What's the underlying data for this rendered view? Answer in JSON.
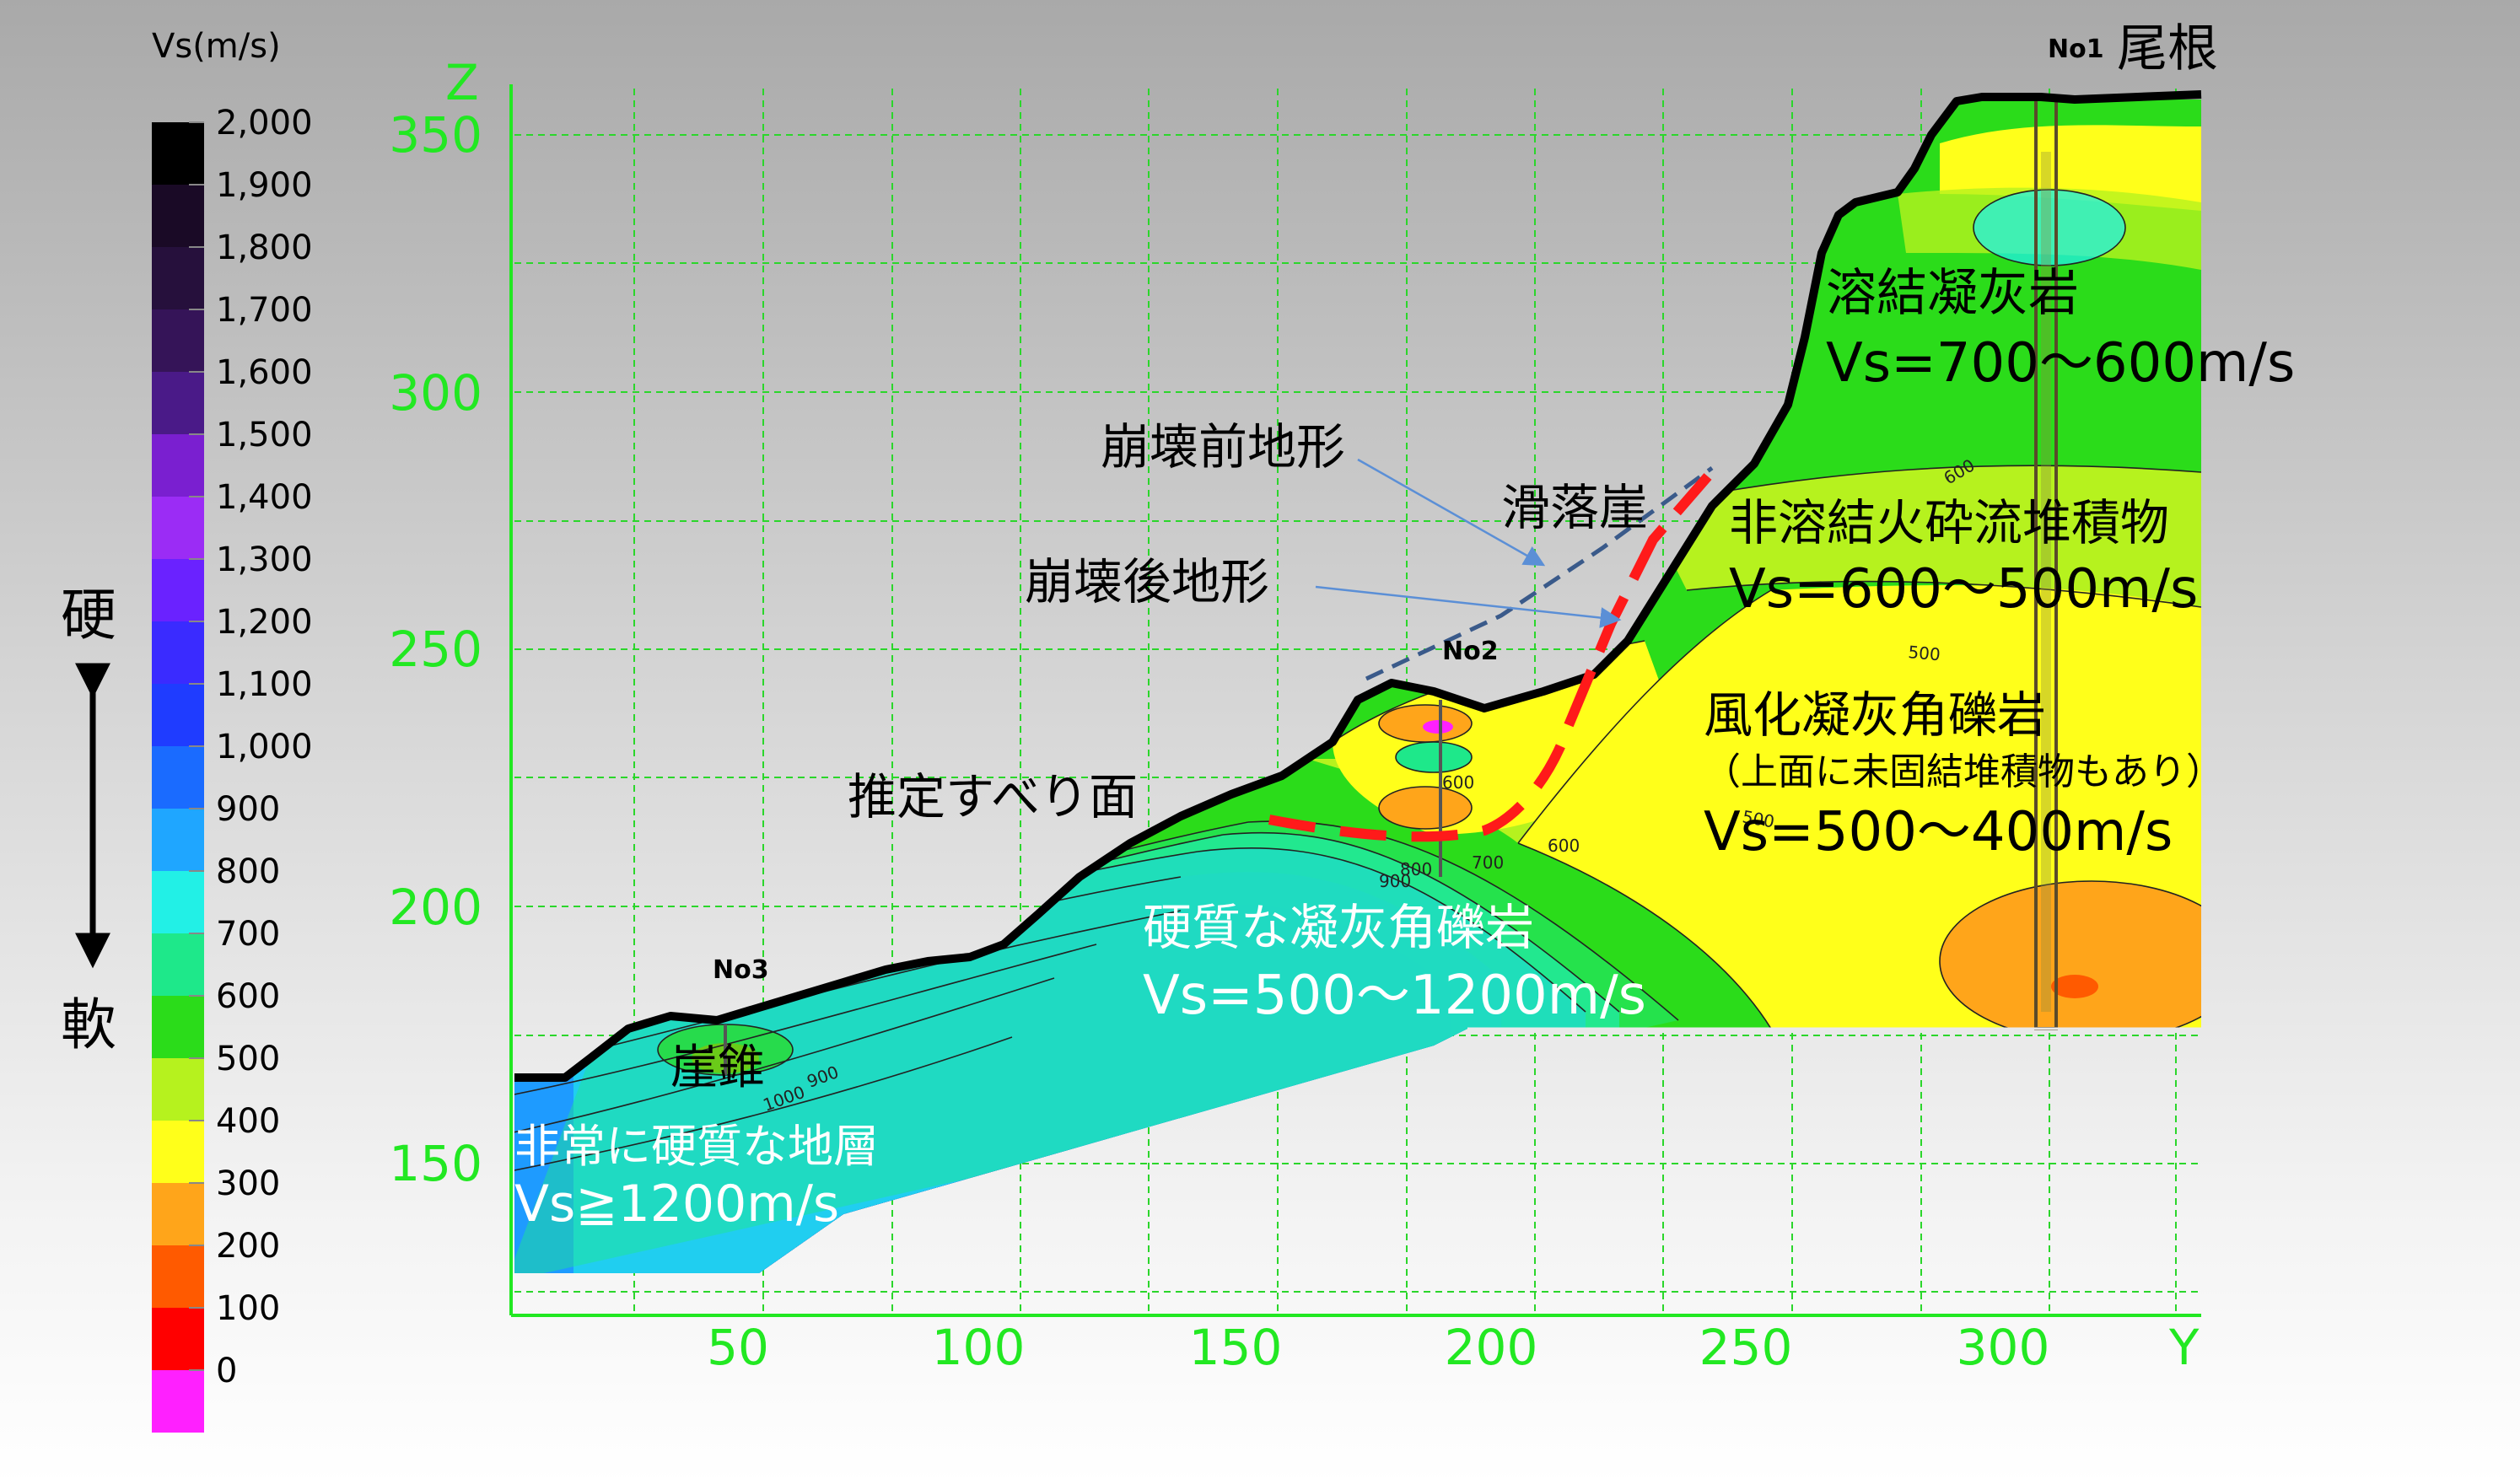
{
  "legend": {
    "title": "Vs(m/s)",
    "stops": [
      {
        "label": "2,000",
        "color": "#000000"
      },
      {
        "label": "1,900",
        "color": "#1a0a26"
      },
      {
        "label": "1,800",
        "color": "#26103c"
      },
      {
        "label": "1,700",
        "color": "#351458"
      },
      {
        "label": "1,600",
        "color": "#4a1a88"
      },
      {
        "label": "1,500",
        "color": "#7a1fd0"
      },
      {
        "label": "1,400",
        "color": "#9b2cf5"
      },
      {
        "label": "1,300",
        "color": "#6a22ff"
      },
      {
        "label": "1,200",
        "color": "#3a2bff"
      },
      {
        "label": "1,100",
        "color": "#1f3cff"
      },
      {
        "label": "1,000",
        "color": "#1a6bff"
      },
      {
        "label": "900",
        "color": "#1fa6ff"
      },
      {
        "label": "800",
        "color": "#22f0e6"
      },
      {
        "label": "700",
        "color": "#1ee88a"
      },
      {
        "label": "600",
        "color": "#2bdc1a"
      },
      {
        "label": "500",
        "color": "#b6f21e"
      },
      {
        "label": "400",
        "color": "#ffff1a"
      },
      {
        "label": "300",
        "color": "#ffa51a"
      },
      {
        "label": "200",
        "color": "#ff5a00"
      },
      {
        "label": "100",
        "color": "#ff0000"
      },
      {
        "label": "0",
        "color": "#ff20ff"
      }
    ],
    "hard": "硬",
    "soft": "軟"
  },
  "axes": {
    "z_title": "Z",
    "y_title": "Y",
    "z_ticks": [
      "350",
      "300",
      "250",
      "200",
      "150"
    ],
    "y_ticks": [
      "50",
      "100",
      "150",
      "200",
      "250",
      "300"
    ],
    "axis_color": "#22e822",
    "grid_color": "#2bd62b"
  },
  "boreholes": {
    "no1": "No1",
    "no2": "No2",
    "no3": "No3"
  },
  "labels": {
    "ridge": "尾根",
    "pre_collapse": "崩壊前地形",
    "post_collapse": "崩壊後地形",
    "scarp": "滑落崖",
    "slip_surface": "推定すべり面",
    "talus": "崖錐",
    "welded_tuff": "溶結凝灰岩",
    "welded_tuff_vs": "Vs=700～600m/s",
    "non_welded": "非溶結火砕流堆積物",
    "non_welded_vs": "Vs=600～500m/s",
    "weathered_breccia": "風化凝灰角礫岩",
    "weathered_breccia_note": "（上面に未固結堆積物もあり）",
    "weathered_breccia_vs": "Vs=500～400m/s",
    "hard_breccia": "硬質な凝灰角礫岩",
    "hard_breccia_vs": "Vs=500～1200m/s",
    "very_hard": "非常に硬質な地層",
    "very_hard_vs": "Vs≧1200m/s"
  },
  "contour_labels": [
    "600",
    "600",
    "500",
    "500",
    "600",
    "700",
    "800",
    "900",
    "900",
    "1000",
    "600"
  ],
  "colors": {
    "slip_surface": "#ff1a1a",
    "pre_collapse_line": "#3a5a8a"
  }
}
